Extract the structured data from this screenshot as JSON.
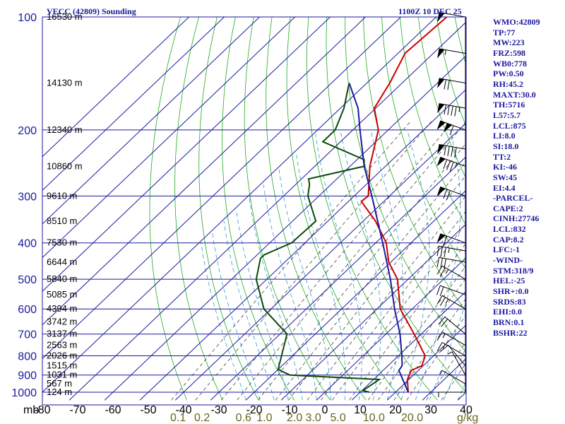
{
  "header": {
    "title": "VECC (42809) Sounding",
    "time": "1100Z 10 DEC 25",
    "pressure_unit": "mb",
    "mixing_unit": "g/kg"
  },
  "indices": [
    "WMO:42809",
    "TP:77",
    "MW:223",
    "FRZ:598",
    "WB0:778",
    "PW:0.50",
    "RH:45.2",
    "MAXT:30.0",
    "TH:5716",
    "L57:5.7",
    "LCL:875",
    "LI:8.0",
    "SI:18.0",
    "TT:2",
    "KI:-46",
    "SW:45",
    "EI:4.4",
    "-PARCEL-",
    "CAPE:2",
    "CINH:27746",
    "LCL:832",
    "CAP:8.2",
    "LFC:-1",
    "-WIND-",
    "STM:318/9",
    "HEL:-25",
    "SHR+:0.0",
    "SRDS:83",
    "EHI:0.0",
    "BRN:0.1",
    "BSHR:22"
  ],
  "chart_data": {
    "type": "line",
    "title": "VECC (42809) Sounding",
    "subtitle": "1100Z 10 DEC 25",
    "xlabel": "",
    "ylabel": "mb",
    "log_y": true,
    "skew": true,
    "xlim": [
      -80,
      40
    ],
    "ylim": [
      1000,
      100
    ],
    "grid": true,
    "pressure_ticks": [
      100,
      200,
      300,
      400,
      500,
      600,
      700,
      800,
      900,
      1000
    ],
    "temperature_ticks": [
      "-80",
      "-70",
      "-60",
      "-50",
      "-40",
      "-30",
      "-20",
      "-10",
      "0",
      "10",
      "20",
      "30",
      "40"
    ],
    "mixing_ratio_ticks": [
      "0.1",
      "0.2",
      "0.6",
      "1.0",
      "2.0",
      "3.0",
      "5.0",
      "10.0",
      "20.0"
    ],
    "height_labels": [
      {
        "p": 100,
        "label": "16530 m"
      },
      {
        "p": 150,
        "label": "14130 m"
      },
      {
        "p": 200,
        "label": "12340 m"
      },
      {
        "p": 250,
        "label": "10860 m"
      },
      {
        "p": 300,
        "label": "9610 m"
      },
      {
        "p": 350,
        "label": "8510 m"
      },
      {
        "p": 400,
        "label": "7530 m"
      },
      {
        "p": 450,
        "label": "6644 m"
      },
      {
        "p": 500,
        "label": "5840 m"
      },
      {
        "p": 550,
        "label": "5085 m"
      },
      {
        "p": 600,
        "label": "4394 m"
      },
      {
        "p": 650,
        "label": "3742 m"
      },
      {
        "p": 700,
        "label": "3137 m"
      },
      {
        "p": 750,
        "label": "2563 m"
      },
      {
        "p": 800,
        "label": "2026 m"
      },
      {
        "p": 850,
        "label": "1515 m"
      },
      {
        "p": 900,
        "label": "1031 m"
      },
      {
        "p": 950,
        "label": "567 m"
      },
      {
        "p": 1000,
        "label": "124 m"
      }
    ],
    "series": [
      {
        "name": "Temperature",
        "color": "#cc0000",
        "points": [
          [
            1000,
            23.6
          ],
          [
            925,
            19.6
          ],
          [
            875,
            18.0
          ],
          [
            850,
            19.6
          ],
          [
            800,
            17.6
          ],
          [
            700,
            8.0
          ],
          [
            600,
            -3.4
          ],
          [
            500,
            -13.0
          ],
          [
            450,
            -20.6
          ],
          [
            400,
            -27.0
          ],
          [
            350,
            -36.5
          ],
          [
            310,
            -46.4
          ],
          [
            300,
            -46.0
          ],
          [
            250,
            -54.4
          ],
          [
            200,
            -62.8
          ],
          [
            175,
            -70.4
          ],
          [
            150,
            -73.5
          ],
          [
            125,
            -78.0
          ],
          [
            100,
            -77.0
          ]
        ]
      },
      {
        "name": "Dewpoint",
        "color": "#0a4a0a",
        "points": [
          [
            1000,
            12.6
          ],
          [
            990,
            10.3
          ],
          [
            925,
            11.6
          ],
          [
            900,
            -15.0
          ],
          [
            870,
            -20.0
          ],
          [
            700,
            -28.0
          ],
          [
            600,
            -42.0
          ],
          [
            500,
            -53.0
          ],
          [
            440,
            -58.0
          ],
          [
            430,
            -58.0
          ],
          [
            400,
            -53.8
          ],
          [
            350,
            -53.4
          ],
          [
            300,
            -63.1
          ],
          [
            280,
            -66.0
          ],
          [
            270,
            -68.0
          ],
          [
            250,
            -56.0
          ],
          [
            240,
            -58.0
          ],
          [
            215,
            -75.0
          ],
          [
            200,
            -75.0
          ],
          [
            175,
            -79.0
          ],
          [
            150,
            -85.0
          ]
        ]
      },
      {
        "name": "Parcel",
        "color": "#1a1aa0",
        "points": [
          [
            1000,
            23.6
          ],
          [
            875,
            14.5
          ],
          [
            850,
            14.0
          ],
          [
            800,
            11.0
          ],
          [
            700,
            4.0
          ],
          [
            600,
            -5.0
          ],
          [
            500,
            -15.0
          ],
          [
            400,
            -28.0
          ],
          [
            300,
            -45.0
          ],
          [
            250,
            -56.0
          ],
          [
            200,
            -68.0
          ],
          [
            175,
            -75.0
          ],
          [
            150,
            -85.0
          ]
        ]
      }
    ],
    "winds": [
      {
        "p": 1000,
        "dir": 270,
        "spd": 5
      },
      {
        "p": 950,
        "dir": 300,
        "spd": 5
      },
      {
        "p": 900,
        "dir": 330,
        "spd": 5
      },
      {
        "p": 850,
        "dir": 320,
        "spd": 10
      },
      {
        "p": 800,
        "dir": 300,
        "spd": 15
      },
      {
        "p": 750,
        "dir": 300,
        "spd": 15
      },
      {
        "p": 700,
        "dir": 310,
        "spd": 20
      },
      {
        "p": 600,
        "dir": 300,
        "spd": 25
      },
      {
        "p": 550,
        "dir": 290,
        "spd": 20
      },
      {
        "p": 500,
        "dir": 300,
        "spd": 25
      },
      {
        "p": 450,
        "dir": 280,
        "spd": 30
      },
      {
        "p": 420,
        "dir": 280,
        "spd": 35
      },
      {
        "p": 400,
        "dir": 290,
        "spd": 60
      },
      {
        "p": 300,
        "dir": 290,
        "spd": 70
      },
      {
        "p": 250,
        "dir": 290,
        "spd": 85
      },
      {
        "p": 225,
        "dir": 280,
        "spd": 90
      },
      {
        "p": 200,
        "dir": 290,
        "spd": 110
      },
      {
        "p": 175,
        "dir": 280,
        "spd": 95
      },
      {
        "p": 150,
        "dir": 280,
        "spd": 70
      },
      {
        "p": 125,
        "dir": 280,
        "spd": 55
      },
      {
        "p": 100,
        "dir": 280,
        "spd": 50
      }
    ]
  }
}
